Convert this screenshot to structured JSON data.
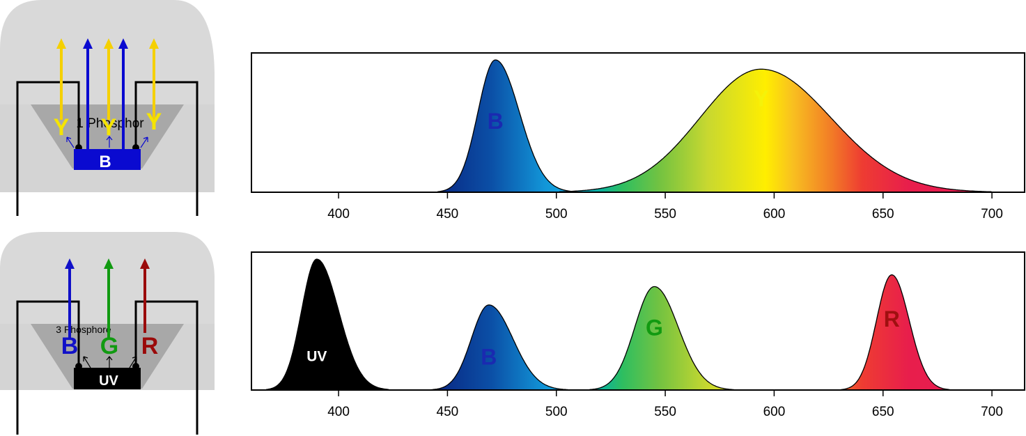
{
  "top_led": {
    "phosphor_label": "1 Phosphor",
    "chip_label": "B",
    "emission_labels": [
      "Y",
      "Y",
      "Y"
    ],
    "colors": {
      "blue": "#0a0ad0",
      "yellow": "#f5d000",
      "dome": "#d9d9d9",
      "phosphor": "#a6a6a6"
    }
  },
  "bottom_led": {
    "phosphor_label": "3 Phosphore",
    "chip_label": "UV",
    "emission_labels": [
      "B",
      "G",
      "R"
    ],
    "colors": {
      "blue": "#1010c8",
      "green": "#119a11",
      "red": "#9a0a0a",
      "chip": "#000000"
    }
  },
  "chart_data": [
    {
      "type": "area",
      "x_range": [
        360,
        715
      ],
      "x_ticks": [
        400,
        450,
        500,
        550,
        600,
        650,
        700
      ],
      "grid": false,
      "peaks": [
        {
          "label": "B",
          "center": 472,
          "relative_height": 1.0,
          "color": "#0a3ea8"
        },
        {
          "label": "Y",
          "center": 594,
          "relative_height": 0.93,
          "color": "#f2e205"
        }
      ]
    },
    {
      "type": "area",
      "x_range": [
        360,
        715
      ],
      "x_ticks": [
        400,
        450,
        500,
        550,
        600,
        650,
        700
      ],
      "grid": false,
      "peaks": [
        {
          "label": "UV",
          "center": 390,
          "relative_height": 1.0,
          "color": "#000000"
        },
        {
          "label": "B",
          "center": 469,
          "relative_height": 0.65,
          "color": "#0a3ea8"
        },
        {
          "label": "G",
          "center": 545,
          "relative_height": 0.79,
          "color": "#118a11"
        },
        {
          "label": "R",
          "center": 654,
          "relative_height": 0.88,
          "color": "#a01010"
        }
      ]
    }
  ]
}
